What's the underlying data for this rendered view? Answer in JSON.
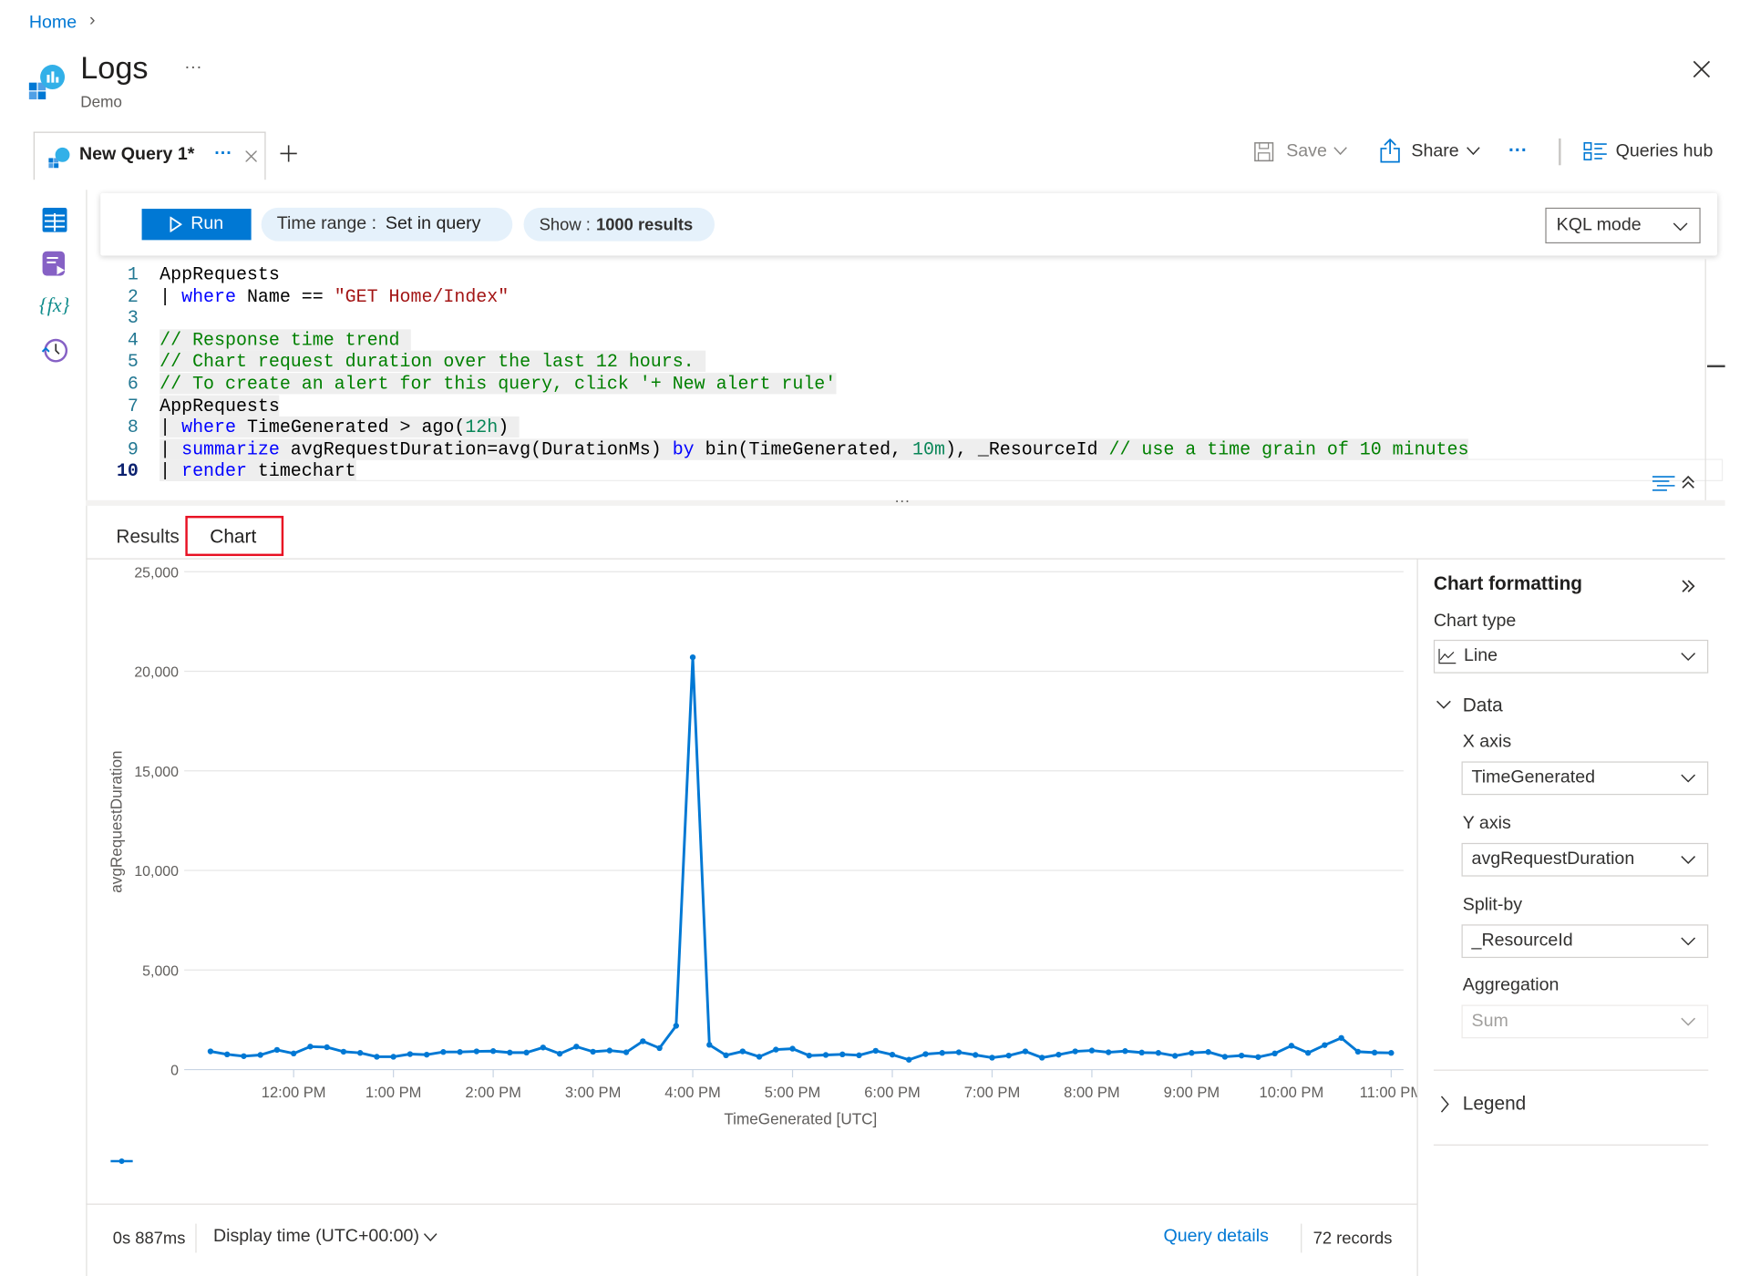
{
  "breadcrumb": {
    "home": "Home"
  },
  "header": {
    "title": "Logs",
    "subtitle": "Demo",
    "more": "···"
  },
  "query_tab": {
    "label": "New Query 1*",
    "more": "···"
  },
  "toolbar": {
    "save": "Save",
    "share": "Share",
    "more": "···",
    "queries_hub": "Queries hub"
  },
  "query_bar": {
    "run": "Run",
    "time_range_label": "Time range :",
    "time_range_value": "Set in query",
    "show_label": "Show :",
    "show_value": "1000 results",
    "mode": "KQL mode"
  },
  "editor": {
    "lines": [
      {
        "n": "1",
        "hl": false,
        "tokens": [
          [
            "AppRequests",
            "pl"
          ]
        ]
      },
      {
        "n": "2",
        "hl": false,
        "tokens": [
          [
            "| ",
            "pl"
          ],
          [
            "where",
            "kw"
          ],
          [
            " Name == ",
            "pl"
          ],
          [
            "\"GET Home/Index\"",
            "str"
          ]
        ]
      },
      {
        "n": "3",
        "hl": false,
        "tokens": []
      },
      {
        "n": "4",
        "hl": true,
        "tokens": [
          [
            "// Response time trend ",
            "cm"
          ]
        ]
      },
      {
        "n": "5",
        "hl": true,
        "tokens": [
          [
            "// Chart request duration over the last 12 hours. ",
            "cm"
          ]
        ]
      },
      {
        "n": "6",
        "hl": true,
        "tokens": [
          [
            "// To create an alert for this query, click '+ New alert rule'",
            "cm"
          ]
        ]
      },
      {
        "n": "7",
        "hl": true,
        "tokens": [
          [
            "AppRequests",
            "pl"
          ]
        ]
      },
      {
        "n": "8",
        "hl": true,
        "tokens": [
          [
            "| ",
            "pl"
          ],
          [
            "where",
            "kw"
          ],
          [
            " TimeGenerated > ago(",
            "pl"
          ],
          [
            "12h",
            "num"
          ],
          [
            ") ",
            "pl"
          ]
        ]
      },
      {
        "n": "9",
        "hl": true,
        "tokens": [
          [
            "| ",
            "pl"
          ],
          [
            "summarize",
            "kw"
          ],
          [
            " avgRequestDuration=avg(DurationMs) ",
            "pl"
          ],
          [
            "by",
            "kw"
          ],
          [
            " bin(TimeGenerated, ",
            "pl"
          ],
          [
            "10m",
            "num"
          ],
          [
            "), _ResourceId ",
            "pl"
          ],
          [
            "// use a time grain of 10 minutes",
            "cm"
          ]
        ]
      },
      {
        "n": "10",
        "hl": true,
        "tokens": [
          [
            "| ",
            "pl"
          ],
          [
            "render",
            "kw"
          ],
          [
            " timechart",
            "pl"
          ]
        ]
      }
    ]
  },
  "results_tabs": {
    "results": "Results",
    "chart": "Chart",
    "active": "Chart"
  },
  "chart_data": {
    "type": "line",
    "xlabel": "TimeGenerated [UTC]",
    "ylabel": "avgRequestDuration",
    "ylim": [
      0,
      25000
    ],
    "yticks": [
      "0",
      "5,000",
      "10,000",
      "15,000",
      "20,000",
      "25,000"
    ],
    "xticks": [
      "12:00 PM",
      "1:00 PM",
      "2:00 PM",
      "3:00 PM",
      "4:00 PM",
      "5:00 PM",
      "6:00 PM",
      "7:00 PM",
      "8:00 PM",
      "9:00 PM",
      "10:00 PM",
      "11:00 PM"
    ],
    "grid": true,
    "color": "#0078d4",
    "x": [
      "11:10",
      "11:20",
      "11:30",
      "11:40",
      "11:50",
      "12:00",
      "12:10",
      "12:20",
      "12:30",
      "12:40",
      "12:50",
      "13:00",
      "13:10",
      "13:20",
      "13:30",
      "13:40",
      "13:50",
      "14:00",
      "14:10",
      "14:20",
      "14:30",
      "14:40",
      "14:50",
      "15:00",
      "15:10",
      "15:20",
      "15:30",
      "15:40",
      "15:50",
      "16:00",
      "16:10",
      "16:20",
      "16:30",
      "16:40",
      "16:50",
      "17:00",
      "17:10",
      "17:20",
      "17:30",
      "17:40",
      "17:50",
      "18:00",
      "18:10",
      "18:20",
      "18:30",
      "18:40",
      "18:50",
      "19:00",
      "19:10",
      "19:20",
      "19:30",
      "19:40",
      "19:50",
      "20:00",
      "20:10",
      "20:20",
      "20:30",
      "20:40",
      "20:50",
      "21:00",
      "21:10",
      "21:20",
      "21:30",
      "21:40",
      "21:50",
      "22:00",
      "22:10",
      "22:20",
      "22:30",
      "22:40",
      "22:50",
      "23:00"
    ],
    "values": [
      915,
      765,
      675,
      735,
      990,
      810,
      1155,
      1125,
      900,
      840,
      645,
      645,
      780,
      750,
      885,
      885,
      915,
      930,
      855,
      855,
      1110,
      795,
      1155,
      900,
      960,
      870,
      1425,
      1080,
      2200,
      20700,
      1245,
      720,
      915,
      645,
      1005,
      1050,
      705,
      735,
      765,
      720,
      945,
      750,
      495,
      780,
      840,
      870,
      735,
      600,
      705,
      915,
      600,
      750,
      915,
      960,
      870,
      930,
      855,
      840,
      690,
      840,
      885,
      645,
      705,
      630,
      810,
      1200,
      840,
      1230,
      1590,
      900,
      855,
      840
    ]
  },
  "chart_formatting": {
    "title": "Chart formatting",
    "chart_type_label": "Chart type",
    "chart_type": "Line",
    "data_section": "Data",
    "x_axis_label": "X axis",
    "x_axis": "TimeGenerated",
    "y_axis_label": "Y axis",
    "y_axis": "avgRequestDuration",
    "split_by_label": "Split-by",
    "split_by": "_ResourceId",
    "aggregation_label": "Aggregation",
    "aggregation": "Sum",
    "legend_section": "Legend"
  },
  "footer": {
    "elapsed": "0s 887ms",
    "display_time": "Display time (UTC+00:00)",
    "query_details": "Query details",
    "records": "72 records"
  }
}
